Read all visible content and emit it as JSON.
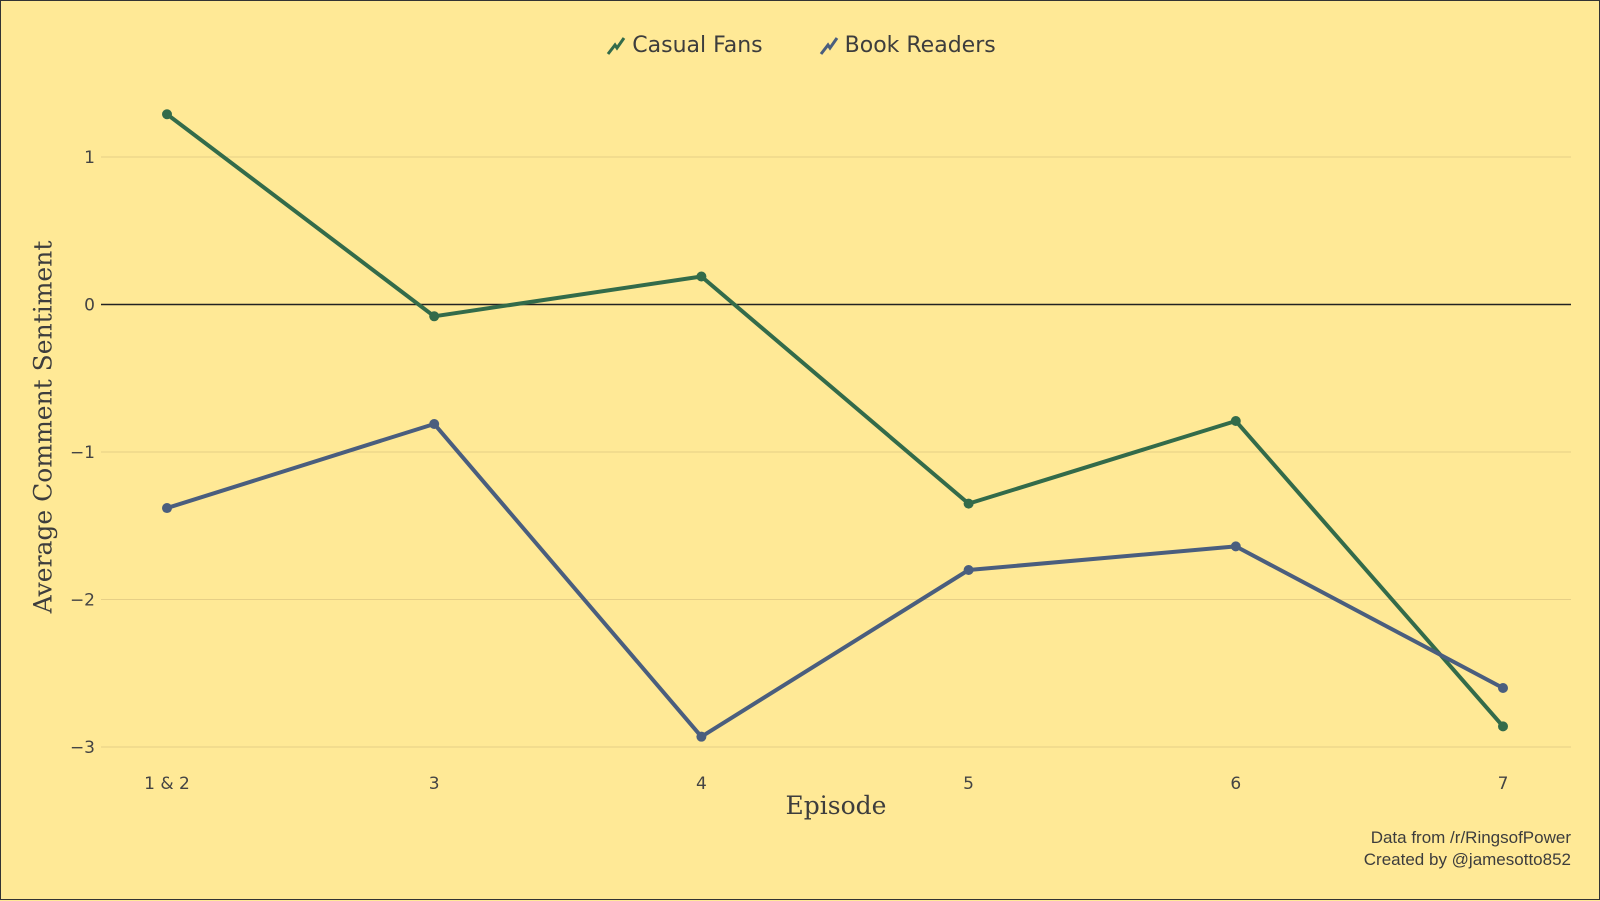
{
  "chart_data": {
    "type": "line",
    "title": "",
    "xlabel": "Episode",
    "ylabel": "Average Comment Sentiment",
    "categories": [
      "1 & 2",
      "3",
      "4",
      "5",
      "6",
      "7"
    ],
    "series": [
      {
        "name": "Casual Fans",
        "color": "#336b4a",
        "values": [
          1.29,
          -0.08,
          0.19,
          -1.35,
          -0.79,
          -2.86
        ]
      },
      {
        "name": "Book Readers",
        "color": "#4a5e7e",
        "values": [
          -1.38,
          -0.81,
          -2.93,
          -1.8,
          -1.64,
          -2.6
        ]
      }
    ],
    "yticks": [
      1,
      0,
      -1,
      -2,
      -3
    ],
    "ytick_labels": [
      "1",
      "0",
      "−1",
      "−2",
      "−3"
    ],
    "ylim": [
      -3.1,
      1.4
    ],
    "grid": "horizontal",
    "zero_line": true,
    "legend_position": "top-center",
    "background": "#ffe996"
  },
  "caption": {
    "line1": "Data from /r/RingsofPower",
    "line2": "Created by @jamesotto852"
  }
}
